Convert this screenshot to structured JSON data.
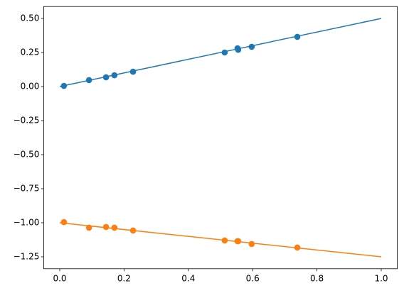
{
  "chart_data": {
    "type": "line",
    "xlim": [
      -0.05,
      1.05
    ],
    "ylim": [
      -1.3375,
      0.5875
    ],
    "xticks": [
      {
        "value": 0,
        "label": "0.0"
      },
      {
        "value": 0.2,
        "label": "0.2"
      },
      {
        "value": 0.4,
        "label": "0.4"
      },
      {
        "value": 0.6,
        "label": "0.6"
      },
      {
        "value": 0.8,
        "label": "0.8"
      },
      {
        "value": 1,
        "label": "1.0"
      }
    ],
    "yticks": [
      {
        "value": -1.25,
        "label": "−1.25"
      },
      {
        "value": -1,
        "label": "−1.00"
      },
      {
        "value": -0.75,
        "label": "−0.75"
      },
      {
        "value": -0.5,
        "label": "−0.50"
      },
      {
        "value": -0.25,
        "label": "−0.25"
      },
      {
        "value": 0,
        "label": "0.00"
      },
      {
        "value": 0.25,
        "label": "0.25"
      },
      {
        "value": 0.5,
        "label": "0.50"
      }
    ],
    "series": [
      {
        "type": "line",
        "color": "#1f77b4",
        "x": [
          0,
          1
        ],
        "values": [
          0,
          0.5
        ]
      },
      {
        "type": "scatter",
        "color": "#1f77b4",
        "x": [
          0.013,
          0.091,
          0.144,
          0.17,
          0.228,
          0.513,
          0.553,
          0.555,
          0.597,
          0.739
        ],
        "values": [
          0.005,
          0.047,
          0.068,
          0.083,
          0.109,
          0.25,
          0.281,
          0.27,
          0.292,
          0.365
        ]
      },
      {
        "type": "line",
        "color": "#ff7f0e",
        "x": [
          0,
          1
        ],
        "values": [
          -1,
          -1.25
        ]
      },
      {
        "type": "scatter",
        "color": "#ff7f0e",
        "x": [
          0.013,
          0.091,
          0.144,
          0.17,
          0.228,
          0.513,
          0.553,
          0.555,
          0.597,
          0.739
        ],
        "values": [
          -0.995,
          -1.036,
          -1.031,
          -1.036,
          -1.057,
          -1.13,
          -1.135,
          -1.135,
          -1.156,
          -1.182
        ]
      }
    ]
  }
}
